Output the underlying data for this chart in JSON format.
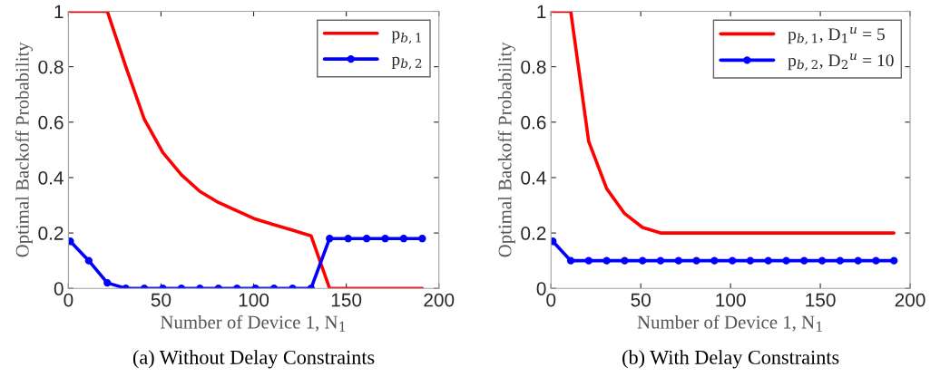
{
  "chart_data": [
    {
      "type": "line",
      "title": "(a) Without Delay Constraints",
      "xlabel": "Number of Device 1, N$_{1}$",
      "ylabel": "Optimal Backoff Probability",
      "x": [
        1,
        11,
        21,
        31,
        41,
        51,
        61,
        71,
        81,
        91,
        101,
        111,
        121,
        131,
        141,
        151,
        161,
        171,
        181,
        191
      ],
      "series": [
        {
          "name": "p$_{b,1}$",
          "color": "#ff0000",
          "marker": "none",
          "values": [
            1,
            1,
            1,
            0.8,
            0.61,
            0.49,
            0.41,
            0.35,
            0.31,
            0.28,
            0.25,
            0.23,
            0.21,
            0.19,
            0,
            0,
            0,
            0,
            0,
            0
          ]
        },
        {
          "name": "p$_{b,2}$",
          "color": "#0000ff",
          "marker": "circle",
          "values": [
            0.17,
            0.1,
            0.02,
            0,
            0,
            0,
            0,
            0,
            0,
            0,
            0,
            0,
            0,
            0,
            0.18,
            0.18,
            0.18,
            0.18,
            0.18,
            0.18
          ]
        }
      ],
      "xlim": [
        0,
        200
      ],
      "xticks": [
        0,
        50,
        100,
        150,
        200
      ],
      "ylim": [
        0,
        1
      ],
      "yticks": [
        0,
        0.2,
        0.4,
        0.6,
        0.8,
        1
      ],
      "grid": false,
      "legend": "top right"
    },
    {
      "type": "line",
      "title": "(b) With Delay Constraints",
      "xlabel": "Number of Device 1, N$_{1}$",
      "ylabel": "Optimal Backoff Probability",
      "x": [
        1,
        11,
        21,
        31,
        41,
        51,
        61,
        71,
        81,
        91,
        101,
        111,
        121,
        131,
        141,
        151,
        161,
        171,
        181,
        191
      ],
      "series": [
        {
          "name": "p$_{b,1}$, D$_{1}$$^{u}$ = 5",
          "color": "#ff0000",
          "marker": "none",
          "values": [
            1,
            1,
            0.53,
            0.36,
            0.27,
            0.22,
            0.2,
            0.2,
            0.2,
            0.2,
            0.2,
            0.2,
            0.2,
            0.2,
            0.2,
            0.2,
            0.2,
            0.2,
            0.2,
            0.2
          ]
        },
        {
          "name": "p$_{b,2}$, D$_{2}$$^{u}$ = 10",
          "color": "#0000ff",
          "marker": "circle",
          "values": [
            0.17,
            0.1,
            0.1,
            0.1,
            0.1,
            0.1,
            0.1,
            0.1,
            0.1,
            0.1,
            0.1,
            0.1,
            0.1,
            0.1,
            0.1,
            0.1,
            0.1,
            0.1,
            0.1,
            0.1
          ]
        }
      ],
      "xlim": [
        0,
        200
      ],
      "xticks": [
        0,
        50,
        100,
        150,
        200
      ],
      "ylim": [
        0,
        1
      ],
      "yticks": [
        0,
        0.2,
        0.4,
        0.6,
        0.8,
        1
      ],
      "grid": false,
      "legend": "top right"
    }
  ]
}
